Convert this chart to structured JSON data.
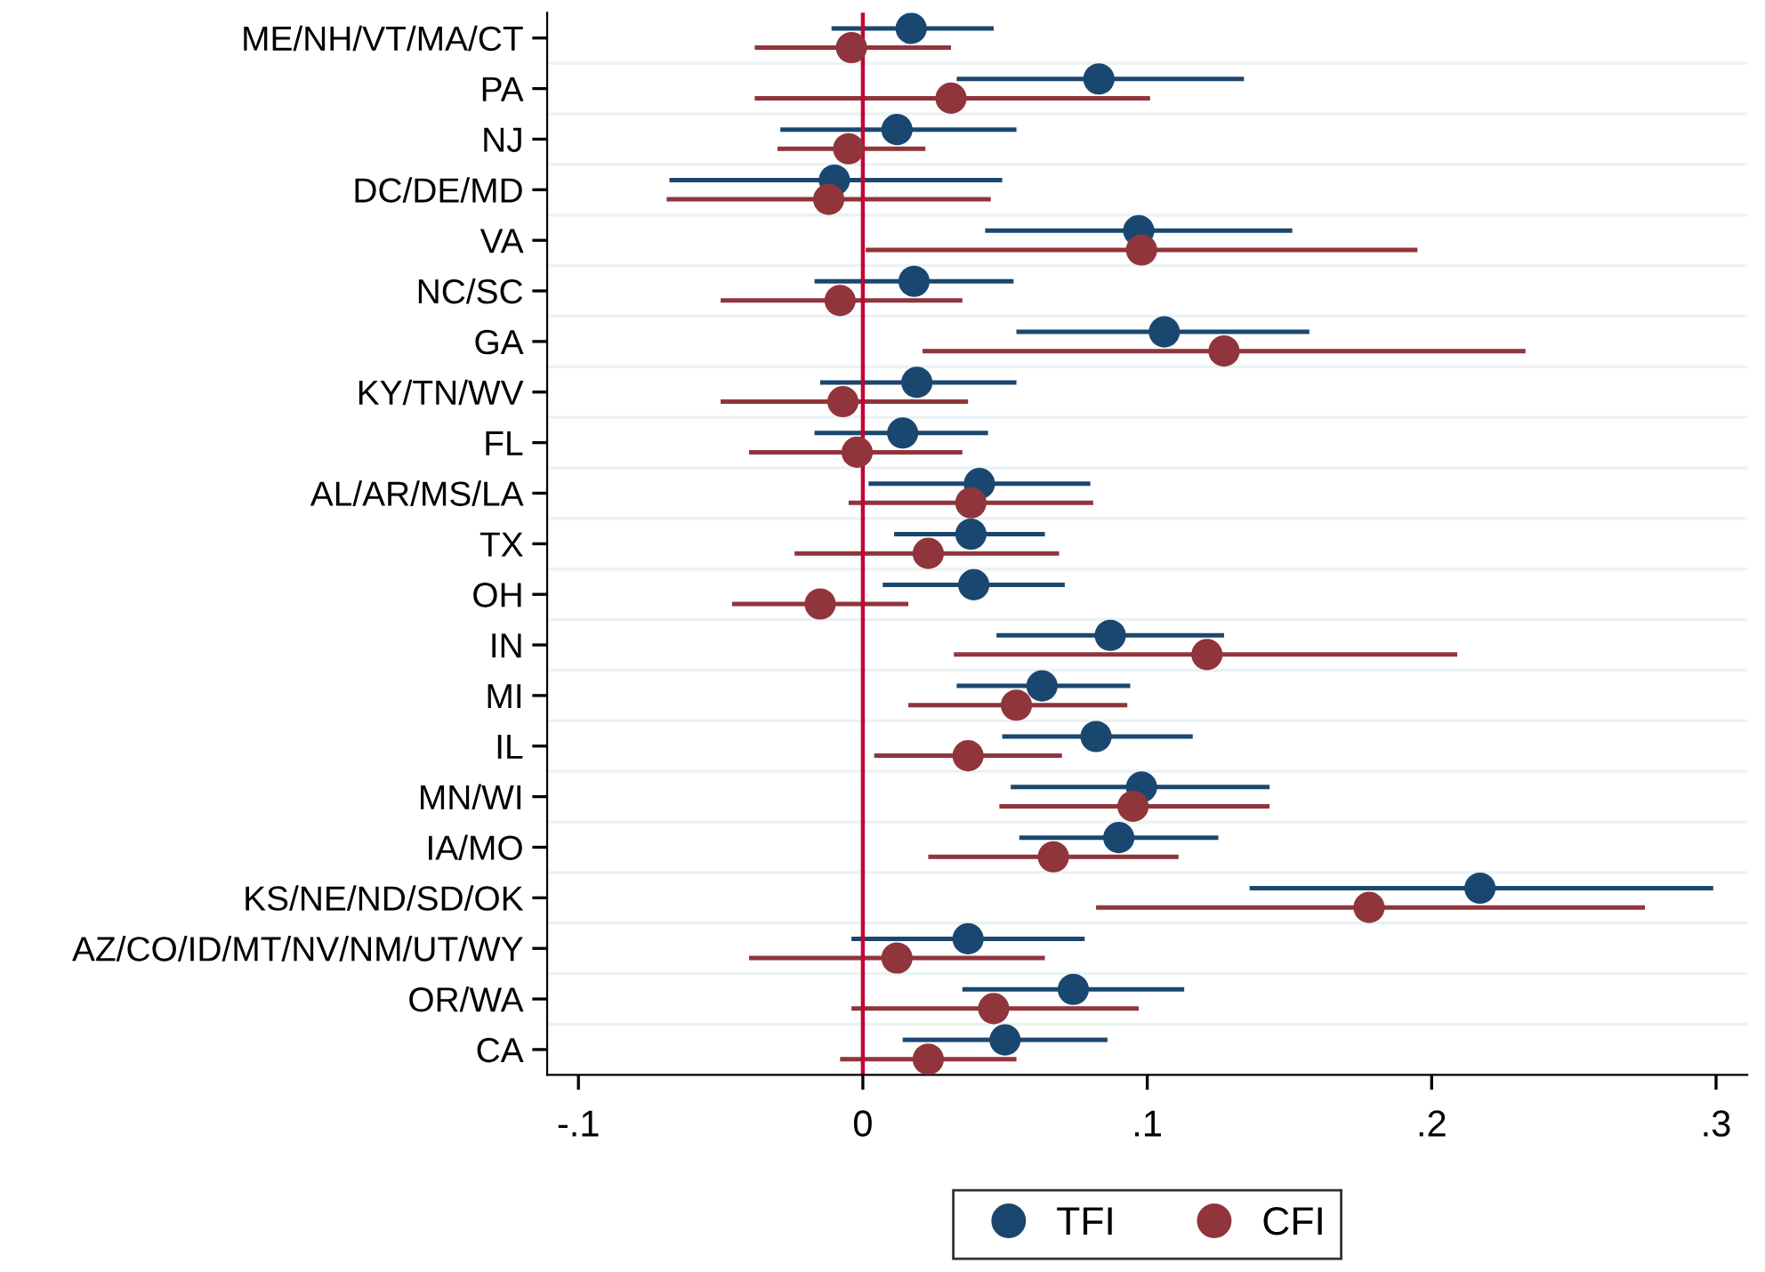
{
  "chart_data": {
    "type": "scatter",
    "orientation": "horizontal",
    "categories": [
      "ME/NH/VT/MA/CT",
      "PA",
      "NJ",
      "DC/DE/MD",
      "VA",
      "NC/SC",
      "GA",
      "KY/TN/WV",
      "FL",
      "AL/AR/MS/LA",
      "TX",
      "OH",
      "IN",
      "MI",
      "IL",
      "MN/WI",
      "IA/MO",
      "KS/NE/ND/SD/OK",
      "AZ/CO/ID/MT/NV/NM/UT/WY",
      "OR/WA",
      "CA"
    ],
    "series": [
      {
        "name": "TFI",
        "color": "#1a476f",
        "values": [
          0.017,
          0.083,
          0.012,
          -0.01,
          0.097,
          0.018,
          0.106,
          0.019,
          0.014,
          0.041,
          0.038,
          0.039,
          0.087,
          0.063,
          0.082,
          0.098,
          0.09,
          0.217,
          0.037,
          0.074,
          0.05
        ],
        "errors": [
          [
            -0.011,
            0.046
          ],
          [
            0.033,
            0.134
          ],
          [
            -0.029,
            0.054
          ],
          [
            -0.068,
            0.049
          ],
          [
            0.043,
            0.151
          ],
          [
            -0.017,
            0.053
          ],
          [
            0.054,
            0.157
          ],
          [
            -0.015,
            0.054
          ],
          [
            -0.017,
            0.044
          ],
          [
            0.002,
            0.08
          ],
          [
            0.011,
            0.064
          ],
          [
            0.007,
            0.071
          ],
          [
            0.047,
            0.127
          ],
          [
            0.033,
            0.094
          ],
          [
            0.049,
            0.116
          ],
          [
            0.052,
            0.143
          ],
          [
            0.055,
            0.125
          ],
          [
            0.136,
            0.299
          ],
          [
            -0.004,
            0.078
          ],
          [
            0.035,
            0.113
          ],
          [
            0.014,
            0.086
          ]
        ]
      },
      {
        "name": "CFI",
        "color": "#90353b",
        "values": [
          -0.004,
          0.031,
          -0.005,
          -0.012,
          0.098,
          -0.008,
          0.127,
          -0.007,
          -0.002,
          0.038,
          0.023,
          -0.015,
          0.121,
          0.054,
          0.037,
          0.095,
          0.067,
          0.178,
          0.012,
          0.046,
          0.023
        ],
        "errors": [
          [
            -0.038,
            0.031
          ],
          [
            -0.038,
            0.101
          ],
          [
            -0.03,
            0.022
          ],
          [
            -0.069,
            0.045
          ],
          [
            0.001,
            0.195
          ],
          [
            -0.05,
            0.035
          ],
          [
            0.021,
            0.233
          ],
          [
            -0.05,
            0.037
          ],
          [
            -0.04,
            0.035
          ],
          [
            -0.005,
            0.081
          ],
          [
            -0.024,
            0.069
          ],
          [
            -0.046,
            0.016
          ],
          [
            0.032,
            0.209
          ],
          [
            0.016,
            0.093
          ],
          [
            0.004,
            0.07
          ],
          [
            0.048,
            0.143
          ],
          [
            0.023,
            0.111
          ],
          [
            0.082,
            0.275
          ],
          [
            -0.04,
            0.064
          ],
          [
            -0.004,
            0.097
          ],
          [
            -0.008,
            0.054
          ]
        ]
      }
    ],
    "xlim": [
      -0.111,
      0.311
    ],
    "xticks": [
      {
        "value": -0.1,
        "label": "-.1"
      },
      0,
      {
        "value": 0.1,
        "label": ".1"
      },
      {
        "value": 0.2,
        "label": ".2"
      },
      {
        "value": 0.3,
        "label": ".3"
      }
    ],
    "ref_lines": [
      {
        "axis": "x",
        "value": 0,
        "color": "#c10534"
      }
    ],
    "grid": "y",
    "legend": "bottom",
    "marker": "circle"
  }
}
